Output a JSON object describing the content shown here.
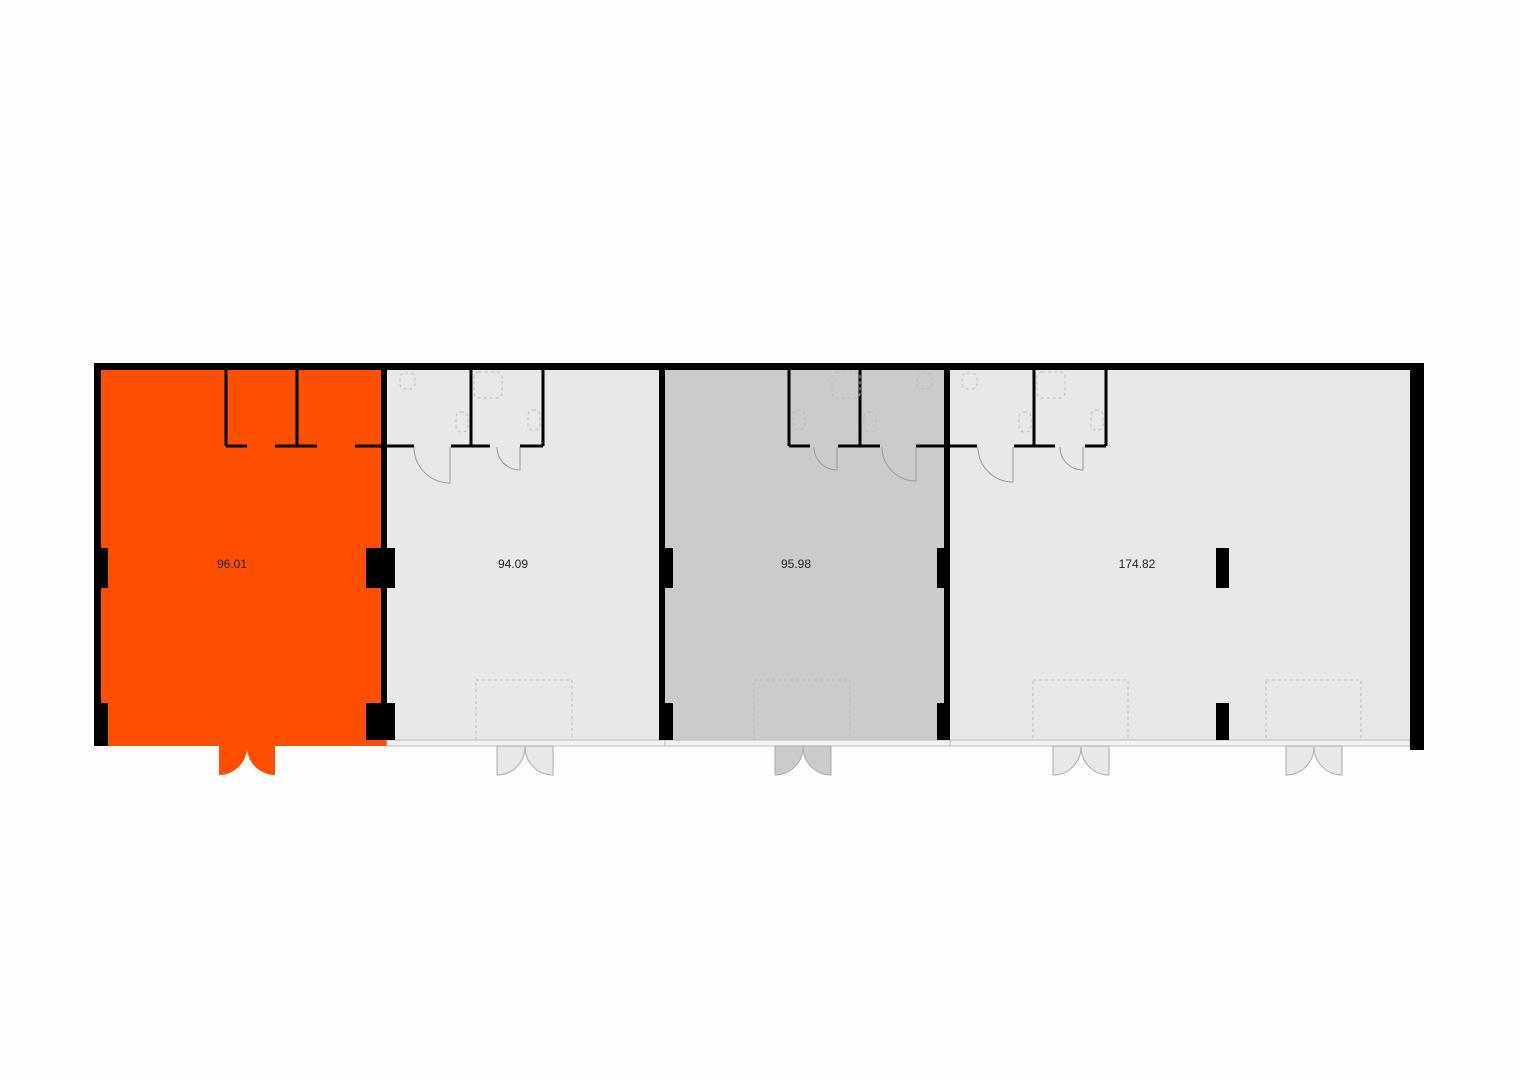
{
  "floor_plan": {
    "units": [
      {
        "area": "96.01",
        "state": "selected",
        "color": "#ff4f00"
      },
      {
        "area": "94.09",
        "state": "available",
        "color": "#e8e8e8"
      },
      {
        "area": "95.98",
        "state": "hovered",
        "color": "#cbcbcb"
      },
      {
        "area": "174.82",
        "state": "available",
        "color": "#e8e8e8"
      }
    ],
    "wall_color": "#000000"
  }
}
